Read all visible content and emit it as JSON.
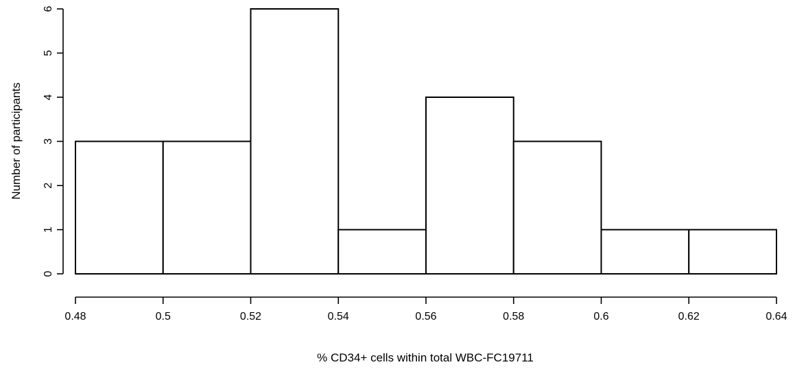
{
  "chart_data": {
    "type": "bar",
    "subtype": "histogram",
    "title": "",
    "xlabel": "% CD34+ cells within total WBC-FC19711",
    "ylabel": "Number of participants",
    "bins": [
      {
        "from": 0.48,
        "to": 0.5,
        "count": 3
      },
      {
        "from": 0.5,
        "to": 0.52,
        "count": 3
      },
      {
        "from": 0.52,
        "to": 0.54,
        "count": 6
      },
      {
        "from": 0.54,
        "to": 0.56,
        "count": 1
      },
      {
        "from": 0.56,
        "to": 0.58,
        "count": 4
      },
      {
        "from": 0.58,
        "to": 0.6,
        "count": 3
      },
      {
        "from": 0.6,
        "to": 0.62,
        "count": 1
      },
      {
        "from": 0.62,
        "to": 0.64,
        "count": 1
      }
    ],
    "xlim": [
      0.48,
      0.64
    ],
    "ylim": [
      0,
      6
    ],
    "x_ticks": [
      "0.48",
      "0.5",
      "0.52",
      "0.54",
      "0.56",
      "0.58",
      "0.6",
      "0.62",
      "0.64"
    ],
    "y_ticks": [
      "0",
      "1",
      "2",
      "3",
      "4",
      "5",
      "6"
    ],
    "grid": false,
    "legend": "none",
    "colors": {
      "bar_fill": "#ffffff",
      "bar_stroke": "#000000"
    }
  }
}
